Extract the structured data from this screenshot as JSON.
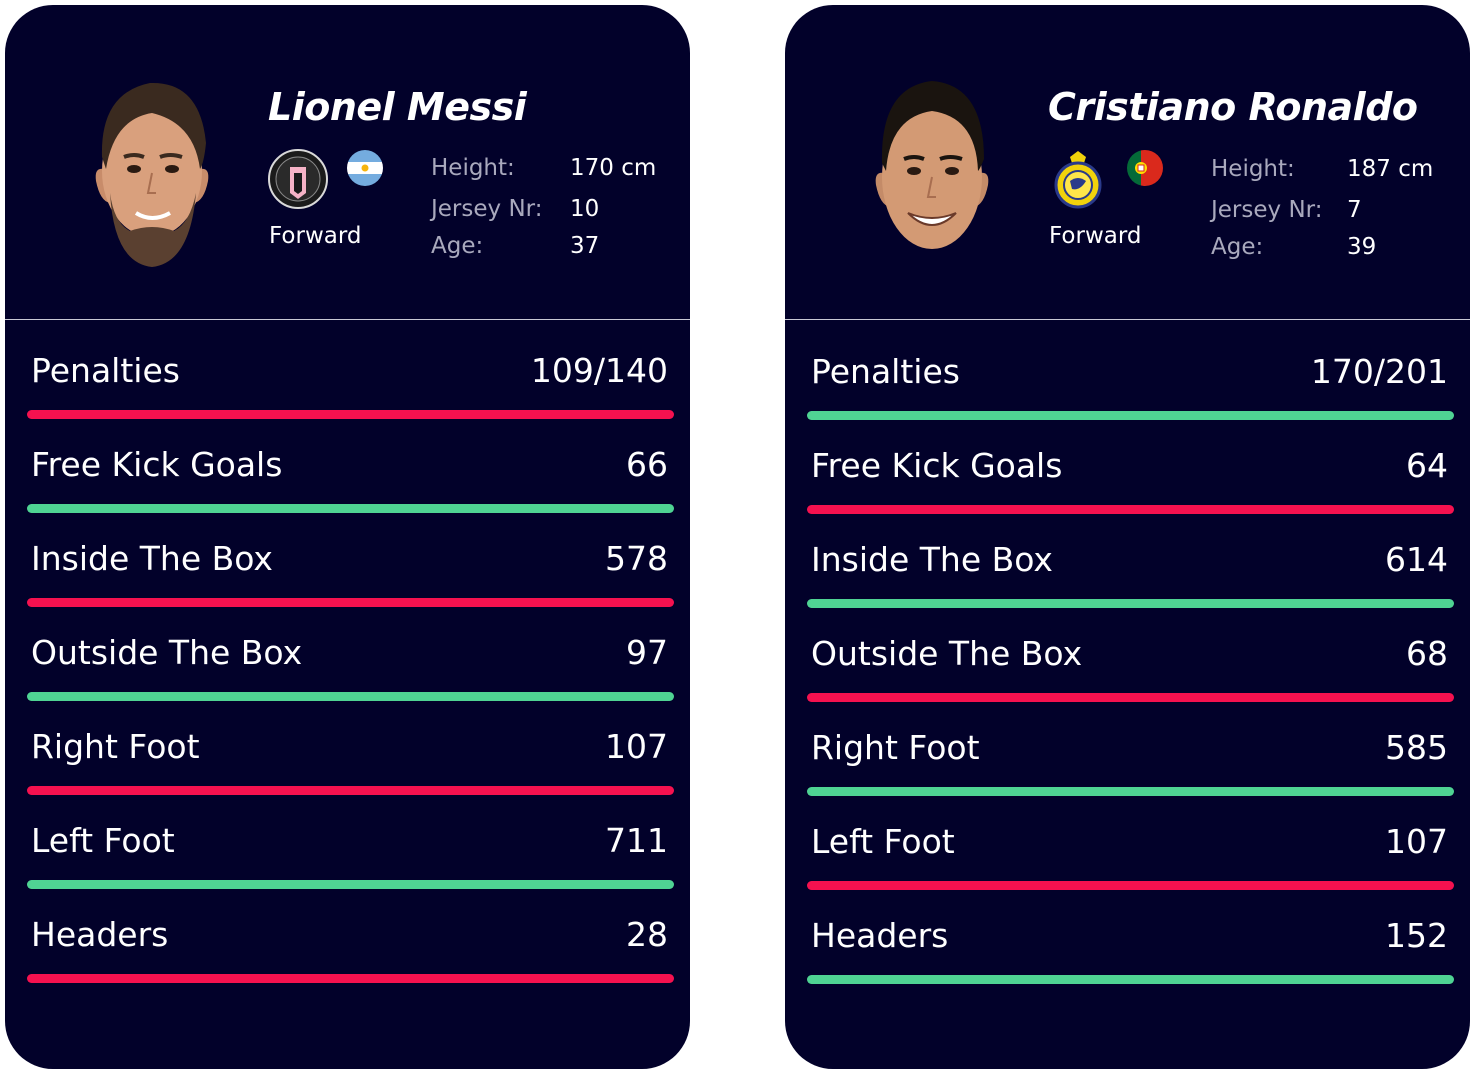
{
  "colors": {
    "card_bg": "#02012a",
    "better": "#4fd393",
    "worse": "#f5114f"
  },
  "players": [
    {
      "name": "Lionel Messi",
      "club_icon": "inter-miami-crest-icon",
      "flag_icon": "argentina-flag-icon",
      "position": "Forward",
      "info": [
        {
          "label": "Height:",
          "value": "170 cm"
        },
        {
          "label": "Jersey Nr:",
          "value": "10"
        },
        {
          "label": "Age:",
          "value": "37"
        }
      ],
      "stats": [
        {
          "label": "Penalties",
          "value": "109/140",
          "bar": "worse"
        },
        {
          "label": "Free Kick Goals",
          "value": "66",
          "bar": "better"
        },
        {
          "label": "Inside The Box",
          "value": "578",
          "bar": "worse"
        },
        {
          "label": "Outside The Box",
          "value": "97",
          "bar": "better"
        },
        {
          "label": "Right Foot",
          "value": "107",
          "bar": "worse"
        },
        {
          "label": "Left Foot",
          "value": "711",
          "bar": "better"
        },
        {
          "label": "Headers",
          "value": "28",
          "bar": "worse"
        }
      ]
    },
    {
      "name": "Cristiano Ronaldo",
      "club_icon": "al-nassr-crest-icon",
      "flag_icon": "portugal-flag-icon",
      "position": "Forward",
      "info": [
        {
          "label": "Height:",
          "value": "187 cm"
        },
        {
          "label": "Jersey Nr:",
          "value": "7"
        },
        {
          "label": "Age:",
          "value": "39"
        }
      ],
      "stats": [
        {
          "label": "Penalties",
          "value": "170/201",
          "bar": "better"
        },
        {
          "label": "Free Kick Goals",
          "value": "64",
          "bar": "worse"
        },
        {
          "label": "Inside The Box",
          "value": "614",
          "bar": "better"
        },
        {
          "label": "Outside The Box",
          "value": "68",
          "bar": "worse"
        },
        {
          "label": "Right Foot",
          "value": "585",
          "bar": "better"
        },
        {
          "label": "Left Foot",
          "value": "107",
          "bar": "worse"
        },
        {
          "label": "Headers",
          "value": "152",
          "bar": "better"
        }
      ]
    }
  ]
}
